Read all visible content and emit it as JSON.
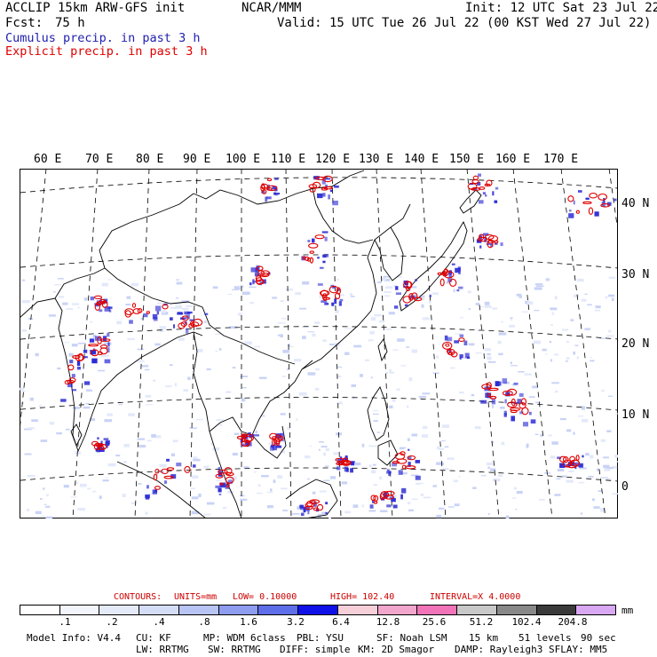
{
  "header": {
    "title_left": "ACCLIP 15km ARW-GFS init",
    "center": "NCAR/MMM",
    "init": "Init: 12 UTC Sat 23 Jul 22",
    "fcst_label": "Fcst:",
    "fcst_value": "75 h",
    "valid": "Valid: 15 UTC Tue 26 Jul 22 (00 KST Wed 27 Jul 22)",
    "cumulus_label": "Cumulus precip. in past 3 h",
    "explicit_label": "Explicit precip. in past 3 h"
  },
  "colors": {
    "cumulus": "#2b2bd4",
    "explicit": "#e00000",
    "coast": "#000000"
  },
  "map": {
    "lon_labels": [
      "60 E",
      "70 E",
      "80 E",
      "90 E",
      "100 E",
      "110 E",
      "120 E",
      "130 E",
      "140 E",
      "150 E",
      "160 E",
      "170 E"
    ],
    "lat_labels": [
      "40 N",
      "30 N",
      "20 N",
      "10 N",
      "0"
    ]
  },
  "contours": {
    "label": "CONTOURS:",
    "units": "UNITS=mm",
    "low": "LOW= 0.10000",
    "high": "HIGH= 102.40",
    "interval": "INTERVAL=X 4.0000"
  },
  "colorbar": {
    "colors": [
      "#ffffff",
      "#f2f5fb",
      "#e4eaf7",
      "#d5ddf6",
      "#b8c4f3",
      "#8e9df0",
      "#5e6de8",
      "#1010e8",
      "#f6cfd8",
      "#f3a6cb",
      "#f274b8",
      "#c8c8c8",
      "#888888",
      "#3a3a3a",
      "#d9a8f2"
    ],
    "labels": [
      ".1",
      ".2",
      ".4",
      ".8",
      "1.6",
      "3.2",
      "6.4",
      "12.8",
      "25.6",
      "51.2",
      "102.4",
      "204.8"
    ],
    "unit": "mm"
  },
  "model_info": {
    "line1": [
      "Model Info: V4.4",
      "CU: KF",
      "MP: WDM 6class",
      "PBL: YSU",
      "SF: Noah LSM",
      "15 km",
      "51 levels",
      "90 sec"
    ],
    "line2": [
      "LW: RRTMG",
      "SW: RRTMG",
      "DIFF: simple",
      "KM: 2D Smagor",
      "DAMP: Rayleigh3",
      "SFLAY: MM5"
    ]
  }
}
